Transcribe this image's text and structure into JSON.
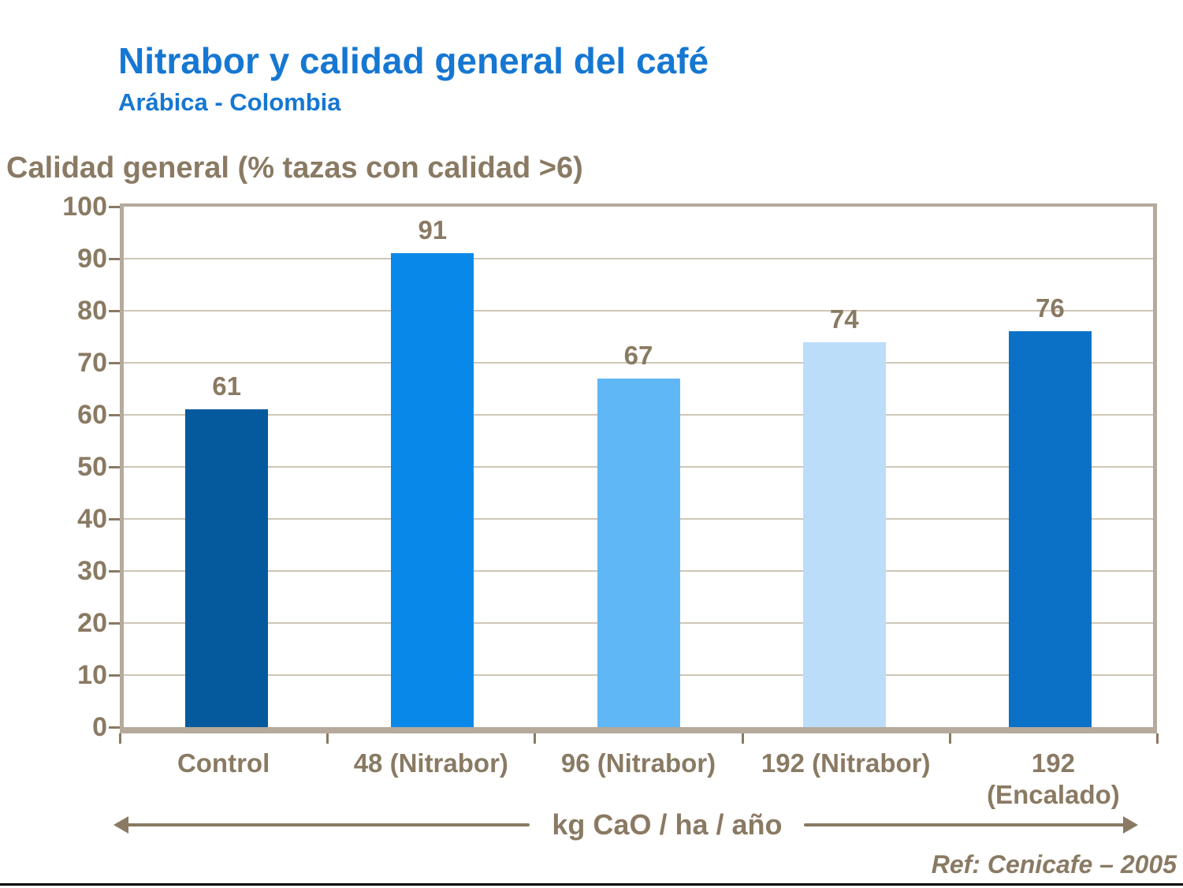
{
  "slide": {
    "title": "Nitrabor y calidad general del café",
    "subtitle": "Arábica - Colombia",
    "reference": "Ref: Cenicafe – 2005",
    "colors": {
      "title_blue": "#1677d2",
      "text_brown": "#8a7a63",
      "frame_tan": "#b5aa9b",
      "gridline": "#cfc6b8",
      "bottom_rule": "#000000"
    }
  },
  "chart_data": {
    "type": "bar",
    "title": "",
    "ylabel": "Calidad general (% tazas con calidad >6)",
    "xlabel": "kg CaO / ha / año",
    "categories": [
      "Control",
      "48 (Nitrabor)",
      "96 (Nitrabor)",
      "192 (Nitrabor)",
      "192\n(Encalado)"
    ],
    "values": [
      61,
      91,
      67,
      74,
      76
    ],
    "bar_colors": [
      "#045a9c",
      "#0889ea",
      "#60b7f6",
      "#bbddfa",
      "#0b71c7"
    ],
    "ylim": [
      0,
      100
    ],
    "ytick_step": 10,
    "grid": true,
    "legend": "none",
    "value_labels": true
  }
}
